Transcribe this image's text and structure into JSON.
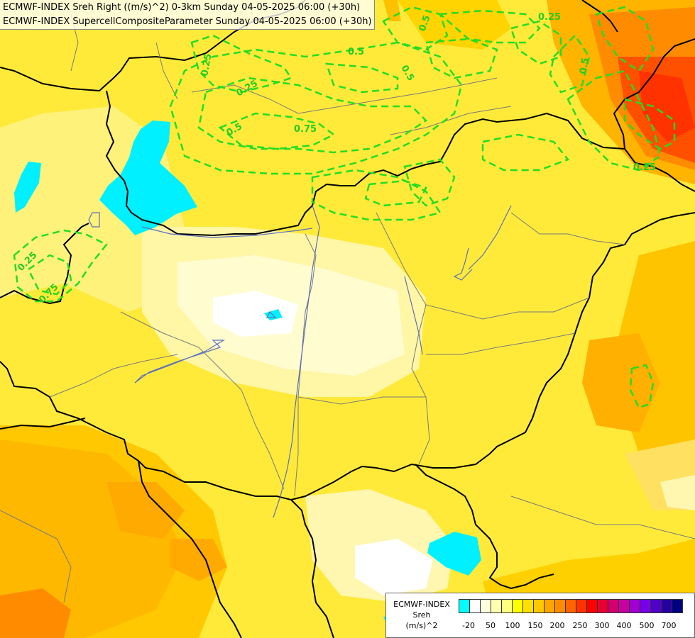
{
  "header": {
    "line1": "ECMWF-INDEX Sreh Right ((m/s)^2) 0-3km Sunday 04-05-2025 06:00 (+30h)",
    "line2": "ECMWF-INDEX SupercellCompositeParameter Sunday 04-05-2025 06:00 (+30h)"
  },
  "legend": {
    "title_line1": "ECMWF-INDEX",
    "title_line2": "Sreh",
    "title_line3": "(m/s)^2",
    "colors": [
      "#00ffff",
      "#ffffff",
      "#ffffe0",
      "#ffffb0",
      "#ffff80",
      "#ffff00",
      "#ffe000",
      "#ffc800",
      "#ffa500",
      "#ff8c00",
      "#ff6400",
      "#ff3200",
      "#ff0000",
      "#e60032",
      "#d2006e",
      "#c800a0",
      "#a000d2",
      "#7800e6",
      "#5000c8",
      "#2800a0",
      "#000080"
    ],
    "tick_labels": [
      "-20",
      "50",
      "100",
      "150",
      "200",
      "250",
      "300",
      "400",
      "500",
      "700"
    ]
  },
  "contour_labels": [
    "0.25",
    "0.5",
    "0.5",
    "0.25",
    "0.5",
    "0.75",
    "0.5",
    "0.25",
    "0.25",
    "0.25",
    "0.5",
    "0.75"
  ],
  "colors": {
    "contour": "#22dd22",
    "border": "#000000",
    "river": "#5a6fbf",
    "region": "#7a7a7a"
  }
}
